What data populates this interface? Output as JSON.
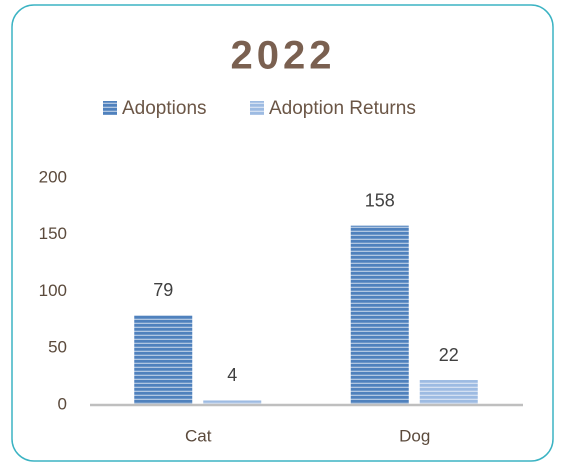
{
  "chart_data": {
    "type": "bar",
    "title": "2022",
    "categories": [
      "Cat",
      "Dog"
    ],
    "series": [
      {
        "name": "Adoptions",
        "color": "#4f81bd",
        "values": [
          79,
          158
        ]
      },
      {
        "name": "Adoption Returns",
        "color": "#9dbbe2",
        "values": [
          4,
          22
        ]
      }
    ],
    "ylim": [
      0,
      200
    ],
    "yticks": [
      0,
      50,
      100,
      150,
      200
    ],
    "grid": false,
    "legend": "top"
  }
}
